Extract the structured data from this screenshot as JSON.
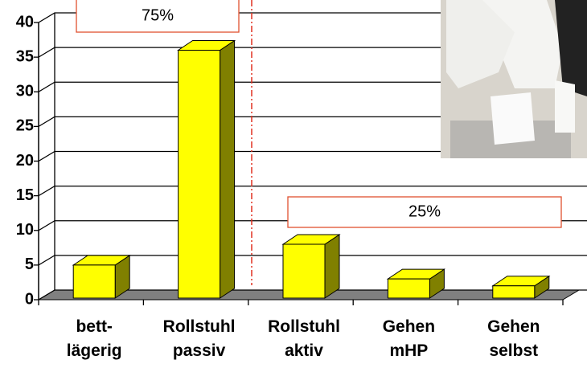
{
  "chart_data": {
    "type": "bar3d",
    "categories": [
      "bett- lägerig",
      "Rollstuhl passiv",
      "Rollstuhl aktiv",
      "Gehen mHP",
      "Gehen selbst"
    ],
    "values": [
      5,
      36,
      8,
      3,
      2
    ],
    "color": "#ffff00",
    "side_color": "#808000",
    "floor_color": "#808080",
    "ylim": [
      0,
      40
    ],
    "yticks": [
      0,
      5,
      10,
      15,
      20,
      25,
      30,
      35,
      40
    ],
    "grid": true,
    "annotations": [
      "75%",
      "25%"
    ]
  }
}
